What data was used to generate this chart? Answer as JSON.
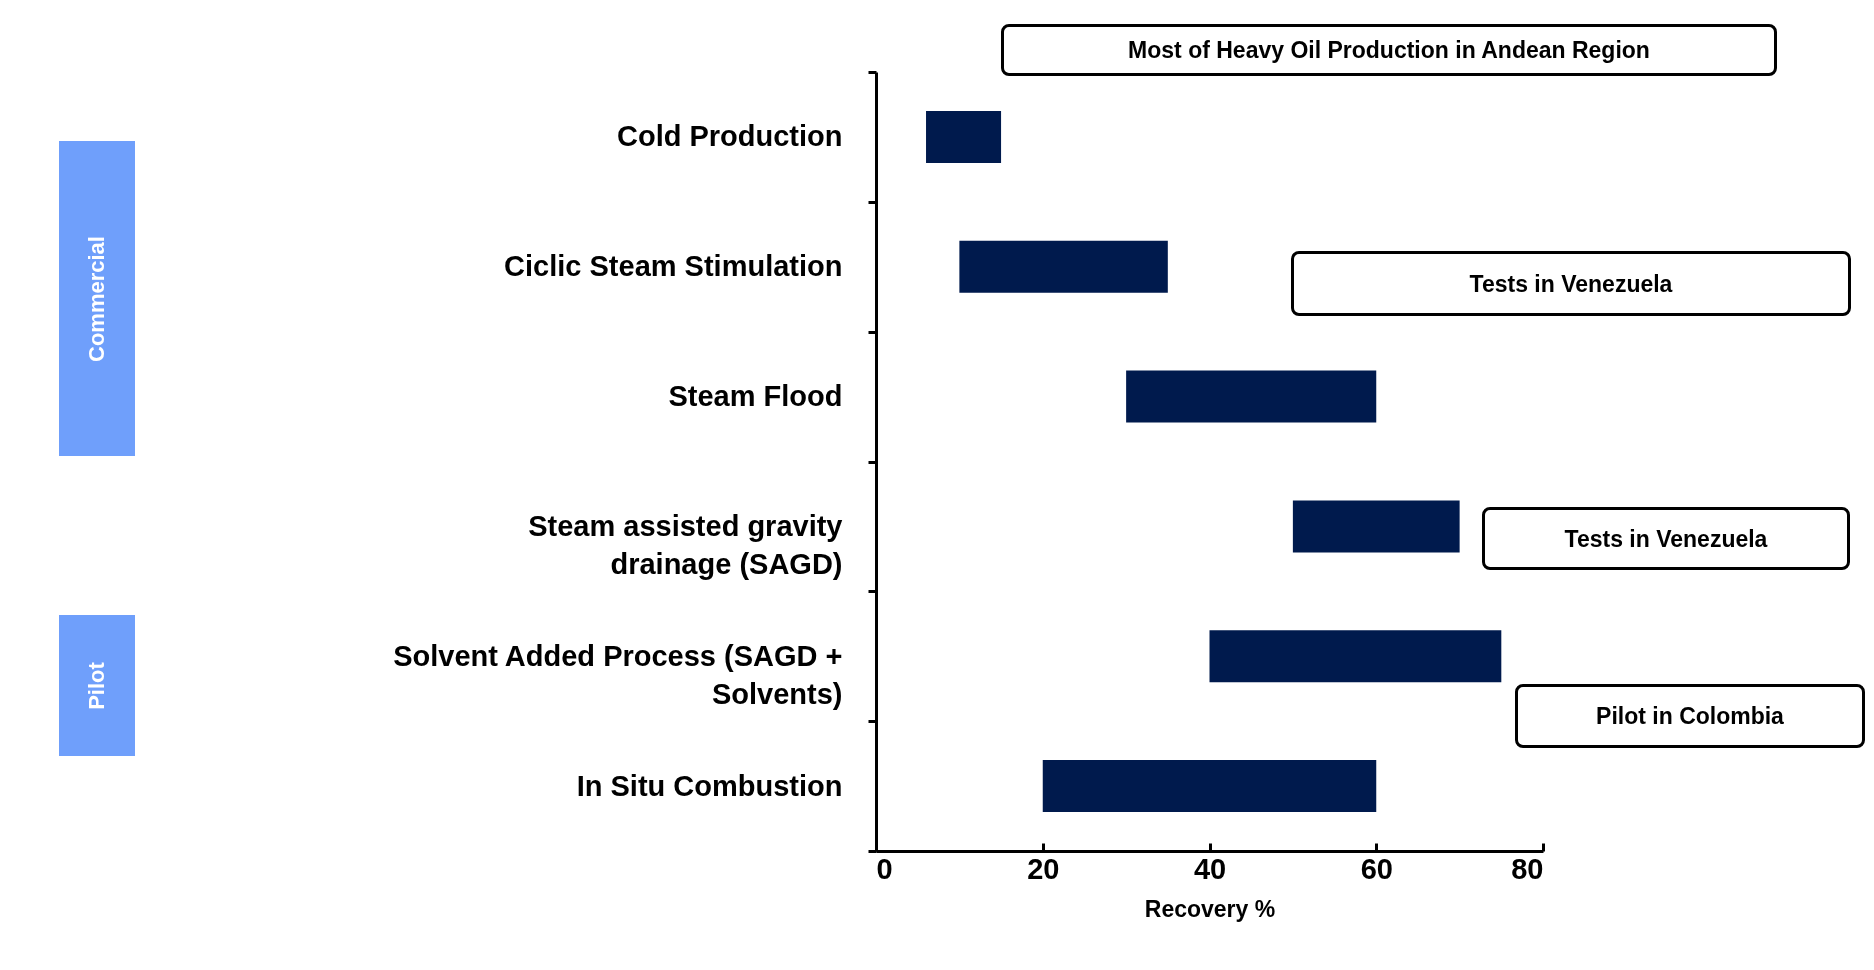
{
  "chart_data": {
    "type": "bar",
    "orientation": "horizontal",
    "xlabel": "Recovery %",
    "categories": [
      "Cold Production",
      "Ciclic Steam Stimulation",
      "Steam Flood",
      "Steam assisted gravity drainage (SAGD)",
      "Solvent Added Process (SAGD + Solvents)",
      "In Situ Combustion"
    ],
    "base": [
      6,
      10,
      30,
      50,
      40,
      20
    ],
    "values": [
      9,
      25,
      30,
      20,
      35,
      40
    ],
    "color": "#001a4d",
    "xlim": [
      0,
      80
    ],
    "xticks": [
      0,
      20,
      40,
      60,
      80
    ],
    "grid": false,
    "annotations": [
      "Most of Heavy Oil Production in Andean Region",
      "Tests in Venezuela",
      "Tests in Venezuela",
      "Pilot in Colombia",
      "Commercial",
      "Pilot"
    ]
  }
}
